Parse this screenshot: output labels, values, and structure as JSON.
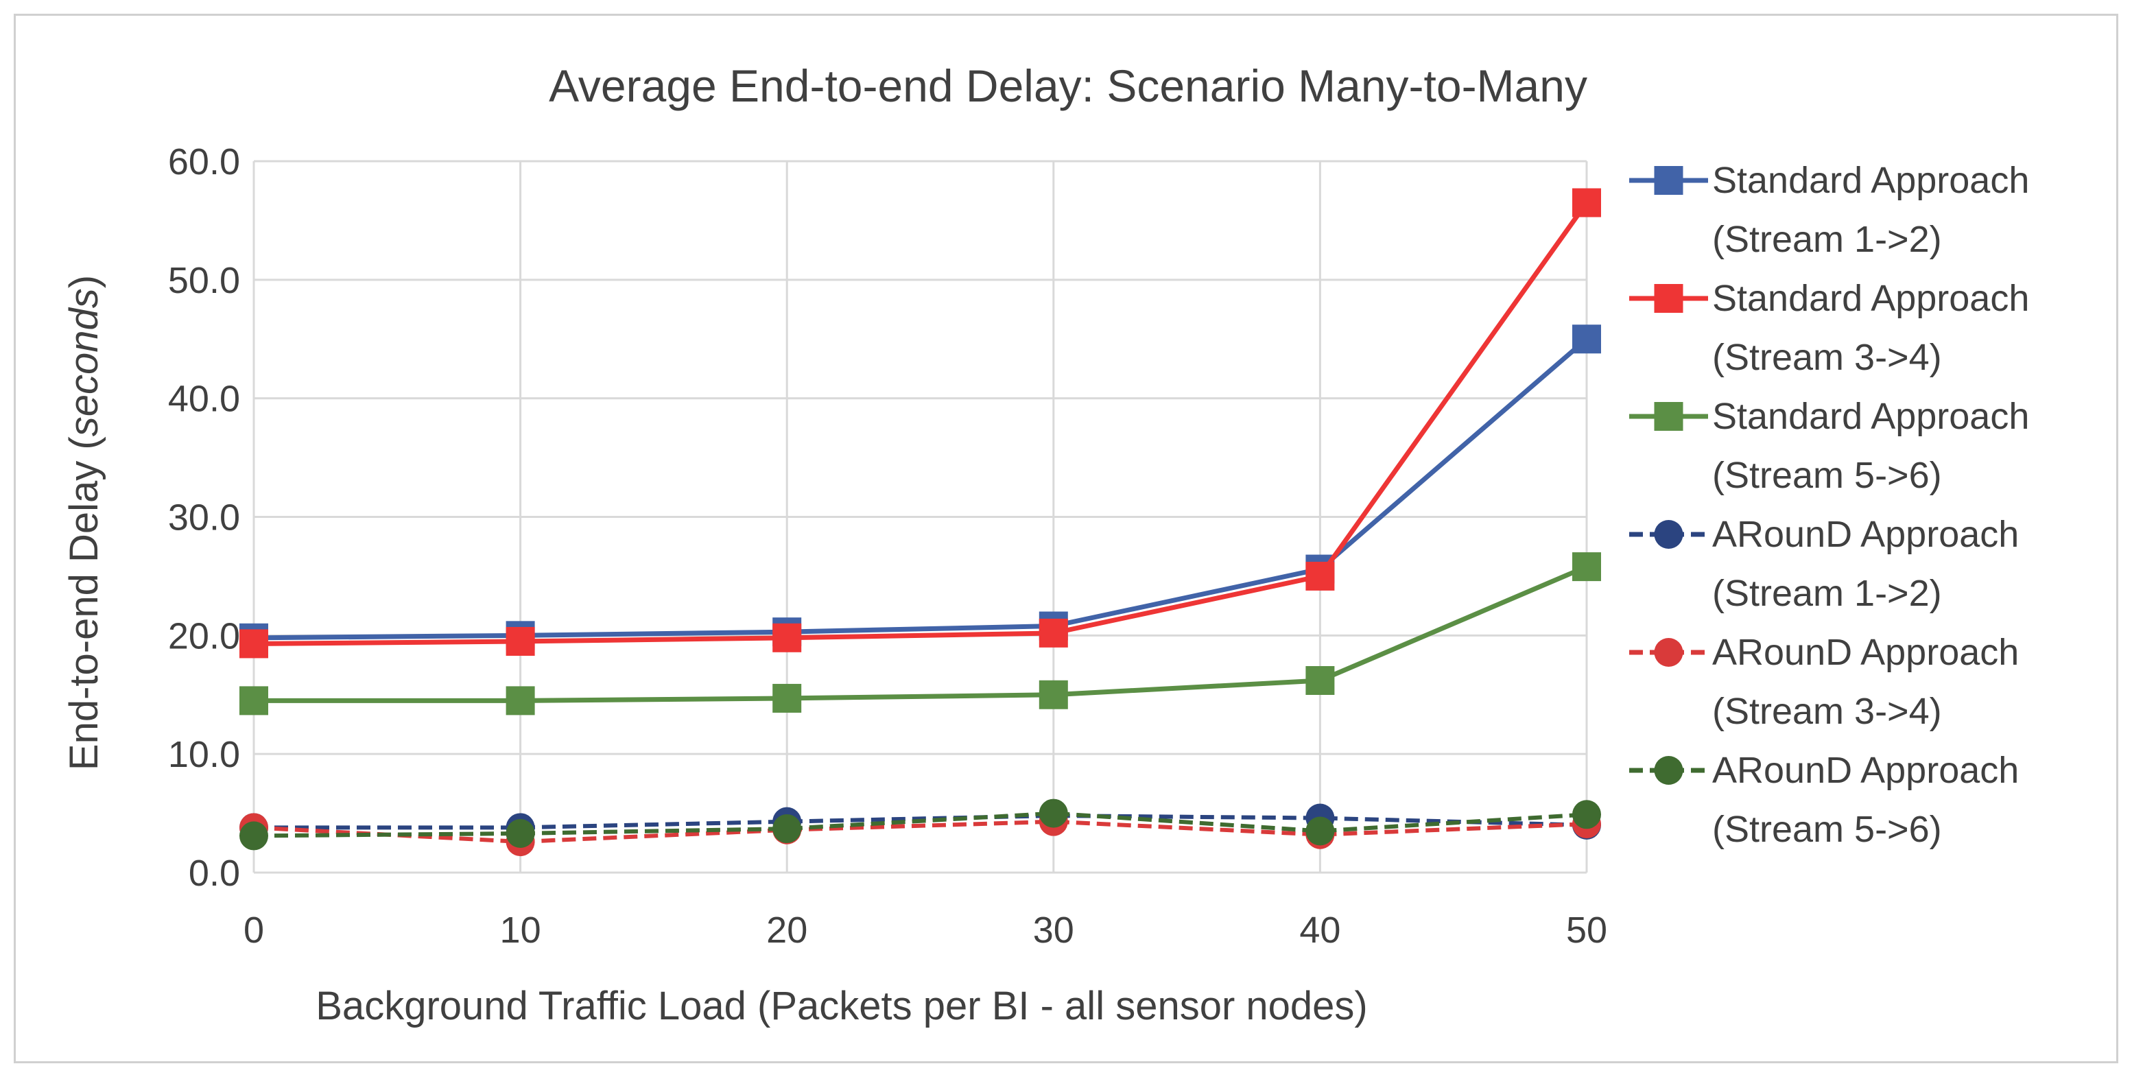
{
  "chart_data": {
    "type": "line",
    "title": "Average End-to-end Delay: Scenario Many-to-Many",
    "xlabel": "Background Traffic Load (Packets per BI - all sensor nodes)",
    "ylabel": "End-to-end Delay (seconds)",
    "ylabel_main": "End-to-end Delay (",
    "ylabel_italic": "seconds",
    "ylabel_close": ")",
    "x": [
      0,
      10,
      20,
      30,
      40,
      50
    ],
    "x_tick_labels": [
      "0",
      "10",
      "20",
      "30",
      "40",
      "50"
    ],
    "ylim": [
      0,
      60
    ],
    "y_ticks": [
      0,
      10,
      20,
      30,
      40,
      50,
      60
    ],
    "y_tick_labels": [
      "0.0",
      "10.0",
      "20.0",
      "30.0",
      "40.0",
      "50.0",
      "60.0"
    ],
    "grid": true,
    "legend_position": "right",
    "series": [
      {
        "name": "Standard Approach (Stream 1->2)",
        "legend_line1": "Standard Approach",
        "legend_line2": "(Stream 1->2)",
        "color": "#4163a8",
        "marker": "square",
        "dash": "solid",
        "values": [
          19.8,
          20.0,
          20.3,
          20.8,
          25.6,
          45.0
        ]
      },
      {
        "name": "Standard Approach (Stream 3->4)",
        "legend_line1": "Standard Approach",
        "legend_line2": "(Stream 3->4)",
        "color": "#ee3535",
        "marker": "square",
        "dash": "solid",
        "values": [
          19.3,
          19.5,
          19.8,
          20.2,
          25.0,
          56.5
        ]
      },
      {
        "name": "Standard Approach (Stream 5->6)",
        "legend_line1": "Standard Approach",
        "legend_line2": "(Stream 5->6)",
        "color": "#5b8f45",
        "marker": "square",
        "dash": "solid",
        "values": [
          14.5,
          14.5,
          14.7,
          15.0,
          16.2,
          25.8
        ]
      },
      {
        "name": "ARounD Approach (Stream 1->2)",
        "legend_line1": "ARounD Approach",
        "legend_line2": "(Stream 1->2)",
        "color": "#2b4480",
        "marker": "circle",
        "dash": "dashed",
        "values": [
          3.8,
          3.8,
          4.3,
          4.8,
          4.6,
          4.0
        ]
      },
      {
        "name": "ARounD Approach (Stream 3->4)",
        "legend_line1": "ARounD Approach",
        "legend_line2": "(Stream 3->4)",
        "color": "#d93a3a",
        "marker": "circle",
        "dash": "dashed",
        "values": [
          3.8,
          2.6,
          3.6,
          4.3,
          3.2,
          4.1
        ]
      },
      {
        "name": "ARounD Approach (Stream 5->6)",
        "legend_line1": "ARounD Approach",
        "legend_line2": "(Stream 5->6)",
        "color": "#3f6b30",
        "marker": "circle",
        "dash": "dashed",
        "values": [
          3.1,
          3.3,
          3.7,
          5.0,
          3.5,
          4.9
        ]
      }
    ]
  }
}
